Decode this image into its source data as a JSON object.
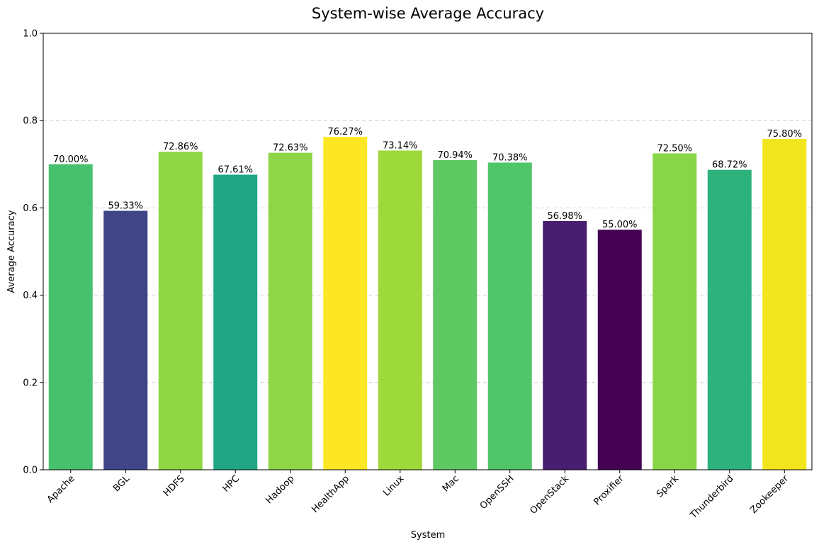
{
  "chart_data": {
    "type": "bar",
    "title": "System-wise Average Accuracy",
    "xlabel": "System",
    "ylabel": "Average Accuracy",
    "ylim": [
      0,
      1.0
    ],
    "yticks": [
      "0.0",
      "0.2",
      "0.4",
      "0.6",
      "0.8",
      "1.0"
    ],
    "grid": "y-dashed",
    "categories": [
      "Apache",
      "BGL",
      "HDFS",
      "HPC",
      "Hadoop",
      "HealthApp",
      "Linux",
      "Mac",
      "OpenSSH",
      "OpenStack",
      "Proxifier",
      "Spark",
      "Thunderbird",
      "Zookeeper"
    ],
    "values": [
      0.7,
      0.5933,
      0.7286,
      0.6761,
      0.7263,
      0.7627,
      0.7314,
      0.7094,
      0.7038,
      0.5698,
      0.55,
      0.725,
      0.6872,
      0.758
    ],
    "data_labels": [
      "70.00%",
      "59.33%",
      "72.86%",
      "67.61%",
      "72.63%",
      "76.27%",
      "73.14%",
      "70.94%",
      "70.38%",
      "56.98%",
      "55.00%",
      "72.50%",
      "68.72%",
      "75.80%"
    ],
    "colors": [
      "#48c16e",
      "#404588",
      "#8fd744",
      "#21a685",
      "#8ed645",
      "#fde725",
      "#9dd93b",
      "#5ec962",
      "#51c56a",
      "#481f70",
      "#440154",
      "#88d548",
      "#2db27d",
      "#f1e51d"
    ]
  }
}
